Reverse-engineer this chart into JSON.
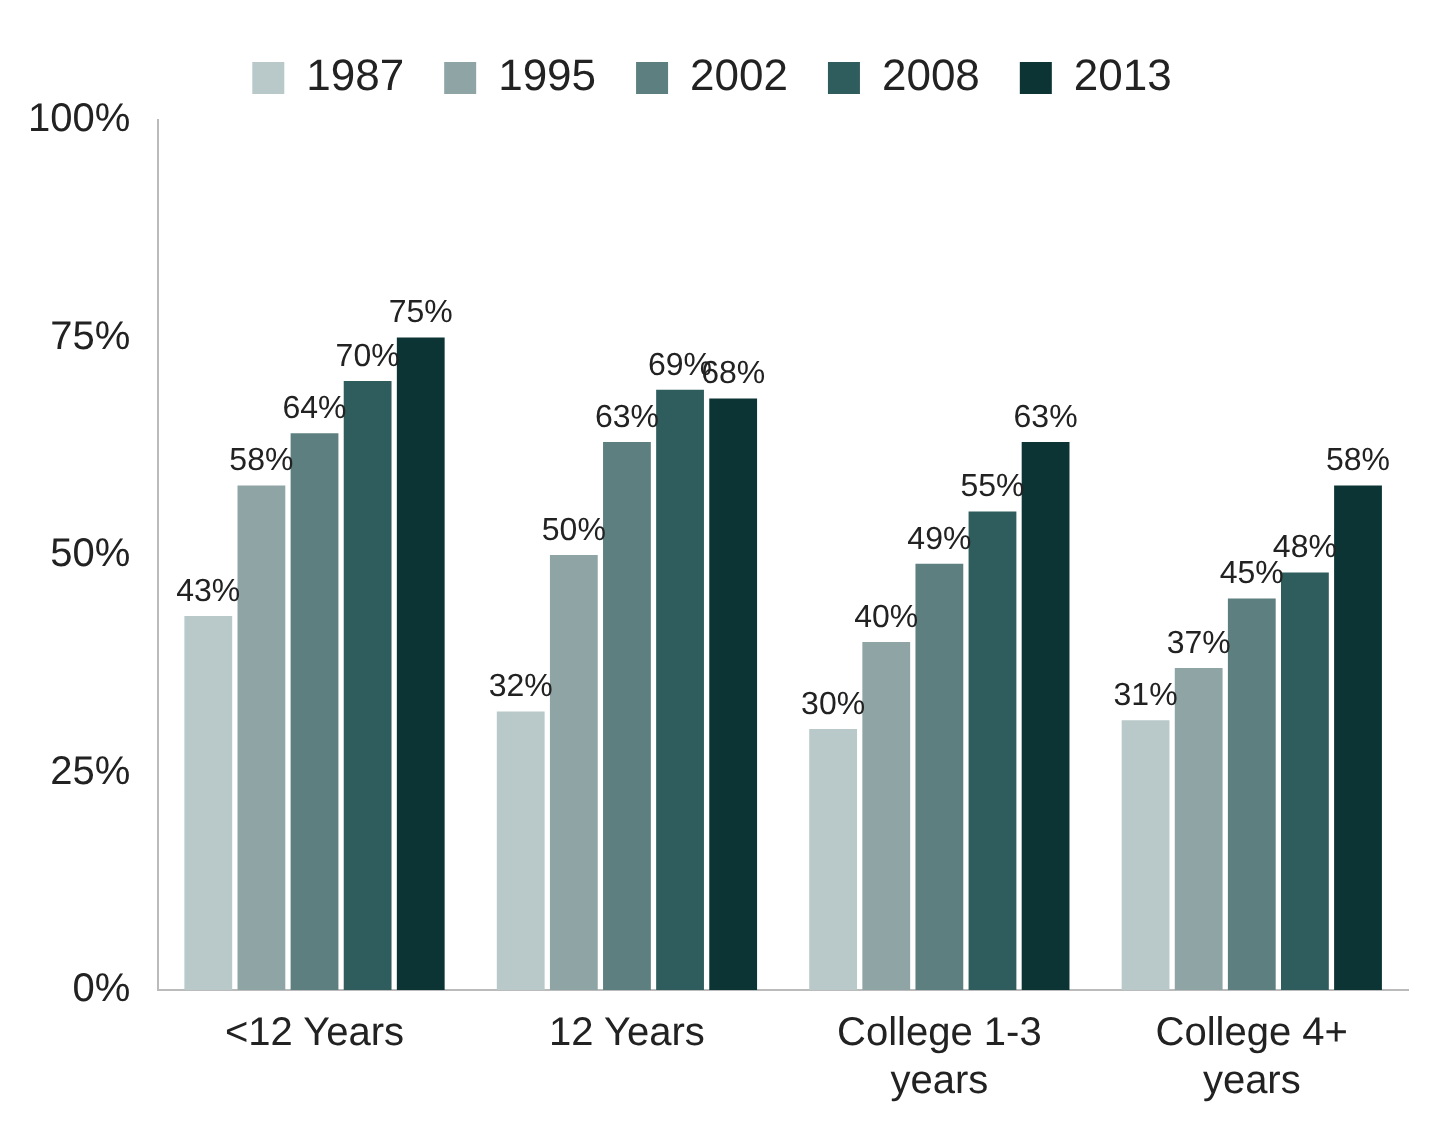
{
  "chart_data": {
    "type": "bar",
    "categories": [
      "<12 Years",
      "12 Years",
      "College 1-3 years",
      "College 4+ years"
    ],
    "series": [
      {
        "name": "1987",
        "color": "#b9c8c8",
        "values": [
          43,
          32,
          30,
          31
        ],
        "value_labels": [
          "43%",
          "32%",
          "30%",
          "31%"
        ]
      },
      {
        "name": "1995",
        "color": "#8fa4a4",
        "values": [
          58,
          50,
          40,
          37
        ],
        "value_labels": [
          "58%",
          "50%",
          "40%",
          "37%"
        ]
      },
      {
        "name": "2002",
        "color": "#5e7f7f",
        "values": [
          64,
          63,
          49,
          45
        ],
        "value_labels": [
          "64%",
          "63%",
          "49%",
          "45%"
        ]
      },
      {
        "name": "2008",
        "color": "#2f5c5c",
        "values": [
          70,
          69,
          55,
          48
        ],
        "value_labels": [
          "70%",
          "69%",
          "55%",
          "48%"
        ]
      },
      {
        "name": "2013",
        "color": "#0c3434",
        "values": [
          75,
          68,
          63,
          58
        ],
        "value_labels": [
          "75%",
          "68%",
          "63%",
          "58%"
        ]
      }
    ],
    "ylim": [
      0,
      100
    ],
    "yticks": [
      {
        "value": 0,
        "label": "0%"
      },
      {
        "value": 25,
        "label": "25%"
      },
      {
        "value": 50,
        "label": "50%"
      },
      {
        "value": 75,
        "label": "75%"
      },
      {
        "value": 100,
        "label": "100%"
      }
    ],
    "grid": false,
    "legend": "top"
  }
}
